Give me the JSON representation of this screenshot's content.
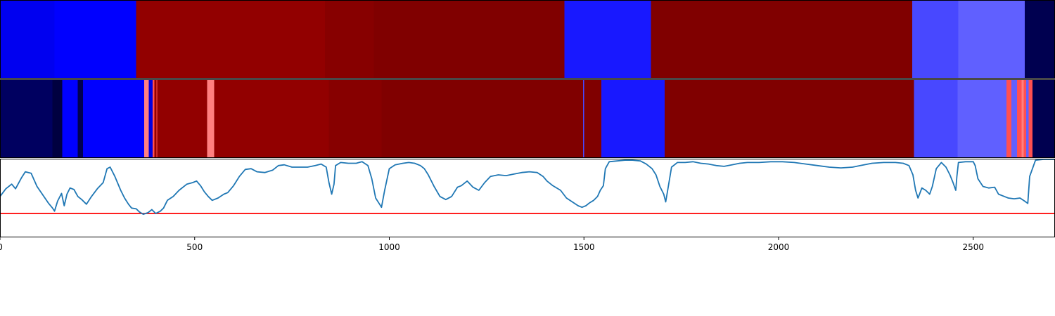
{
  "chart_data": {
    "type": "heatmap",
    "x_range": [
      0,
      2710
    ],
    "x_ticks": [
      0,
      500,
      1000,
      1500,
      2000,
      2500
    ],
    "x_tick_labels": [
      "0",
      "500",
      "1000",
      "1500",
      "2000",
      "2500"
    ],
    "strips": [
      {
        "segments": [
          {
            "start": 0,
            "end": 140,
            "color": "#0000f0"
          },
          {
            "start": 140,
            "end": 350,
            "color": "#0000ff"
          },
          {
            "start": 350,
            "end": 835,
            "color": "#920000"
          },
          {
            "start": 835,
            "end": 960,
            "color": "#870000"
          },
          {
            "start": 960,
            "end": 1450,
            "color": "#800000"
          },
          {
            "start": 1450,
            "end": 1672,
            "color": "#1818ff"
          },
          {
            "start": 1672,
            "end": 2343,
            "color": "#800000"
          },
          {
            "start": 2343,
            "end": 2462,
            "color": "#4848ff"
          },
          {
            "start": 2462,
            "end": 2632,
            "color": "#6060ff"
          },
          {
            "start": 2632,
            "end": 2710,
            "color": "#000050"
          }
        ]
      },
      {
        "segments": [
          {
            "start": 0,
            "end": 135,
            "color": "#000060"
          },
          {
            "start": 135,
            "end": 160,
            "color": "#000040"
          },
          {
            "start": 160,
            "end": 200,
            "color": "#0000ff"
          },
          {
            "start": 200,
            "end": 213,
            "color": "#000050"
          },
          {
            "start": 213,
            "end": 370,
            "color": "#0000ff"
          },
          {
            "start": 370,
            "end": 382,
            "color": "#ff8080"
          },
          {
            "start": 382,
            "end": 392,
            "color": "#0000e0"
          },
          {
            "start": 392,
            "end": 397,
            "color": "#ff5050"
          },
          {
            "start": 397,
            "end": 402,
            "color": "#920000"
          },
          {
            "start": 402,
            "end": 404,
            "color": "#ff5050"
          },
          {
            "start": 404,
            "end": 532,
            "color": "#920000"
          },
          {
            "start": 532,
            "end": 550,
            "color": "#ff8080"
          },
          {
            "start": 550,
            "end": 845,
            "color": "#920000"
          },
          {
            "start": 845,
            "end": 980,
            "color": "#870000"
          },
          {
            "start": 980,
            "end": 1498,
            "color": "#800000"
          },
          {
            "start": 1498,
            "end": 1500,
            "color": "#4848ff"
          },
          {
            "start": 1500,
            "end": 1545,
            "color": "#800000"
          },
          {
            "start": 1545,
            "end": 1707,
            "color": "#1818ff"
          },
          {
            "start": 1707,
            "end": 2348,
            "color": "#800000"
          },
          {
            "start": 2348,
            "end": 2460,
            "color": "#4848ff"
          },
          {
            "start": 2460,
            "end": 2585,
            "color": "#6060ff"
          },
          {
            "start": 2585,
            "end": 2598,
            "color": "#ff5050"
          },
          {
            "start": 2598,
            "end": 2612,
            "color": "#6060ff"
          },
          {
            "start": 2612,
            "end": 2624,
            "color": "#ff5050"
          },
          {
            "start": 2624,
            "end": 2630,
            "color": "#ff8080"
          },
          {
            "start": 2630,
            "end": 2636,
            "color": "#ff5050"
          },
          {
            "start": 2636,
            "end": 2642,
            "color": "#6060ff"
          },
          {
            "start": 2642,
            "end": 2652,
            "color": "#ff5050"
          },
          {
            "start": 2652,
            "end": 2710,
            "color": "#000050"
          }
        ]
      }
    ],
    "line_panel": {
      "type": "line",
      "ylim": [
        0,
        1
      ],
      "line_color": "#1f77b4",
      "threshold": 0.3,
      "threshold_color": "#ff0000",
      "points": [
        [
          0,
          0.52
        ],
        [
          15,
          0.62
        ],
        [
          30,
          0.68
        ],
        [
          40,
          0.62
        ],
        [
          55,
          0.76
        ],
        [
          65,
          0.84
        ],
        [
          80,
          0.82
        ],
        [
          95,
          0.65
        ],
        [
          110,
          0.54
        ],
        [
          125,
          0.43
        ],
        [
          135,
          0.37
        ],
        [
          140,
          0.33
        ],
        [
          148,
          0.46
        ],
        [
          158,
          0.56
        ],
        [
          165,
          0.4
        ],
        [
          172,
          0.55
        ],
        [
          180,
          0.63
        ],
        [
          190,
          0.61
        ],
        [
          200,
          0.52
        ],
        [
          210,
          0.48
        ],
        [
          222,
          0.42
        ],
        [
          235,
          0.52
        ],
        [
          250,
          0.62
        ],
        [
          265,
          0.7
        ],
        [
          275,
          0.88
        ],
        [
          283,
          0.9
        ],
        [
          295,
          0.78
        ],
        [
          310,
          0.6
        ],
        [
          320,
          0.5
        ],
        [
          330,
          0.42
        ],
        [
          338,
          0.37
        ],
        [
          350,
          0.36
        ],
        [
          358,
          0.32
        ],
        [
          368,
          0.29
        ],
        [
          380,
          0.31
        ],
        [
          390,
          0.35
        ],
        [
          400,
          0.3
        ],
        [
          412,
          0.33
        ],
        [
          420,
          0.37
        ],
        [
          430,
          0.47
        ],
        [
          445,
          0.52
        ],
        [
          460,
          0.6
        ],
        [
          480,
          0.68
        ],
        [
          495,
          0.7
        ],
        [
          505,
          0.72
        ],
        [
          515,
          0.66
        ],
        [
          525,
          0.58
        ],
        [
          535,
          0.52
        ],
        [
          545,
          0.47
        ],
        [
          560,
          0.5
        ],
        [
          575,
          0.55
        ],
        [
          585,
          0.57
        ],
        [
          600,
          0.66
        ],
        [
          615,
          0.78
        ],
        [
          630,
          0.87
        ],
        [
          645,
          0.88
        ],
        [
          660,
          0.84
        ],
        [
          680,
          0.83
        ],
        [
          700,
          0.86
        ],
        [
          715,
          0.92
        ],
        [
          730,
          0.93
        ],
        [
          750,
          0.9
        ],
        [
          770,
          0.9
        ],
        [
          790,
          0.9
        ],
        [
          810,
          0.92
        ],
        [
          825,
          0.94
        ],
        [
          838,
          0.9
        ],
        [
          845,
          0.7
        ],
        [
          852,
          0.55
        ],
        [
          858,
          0.68
        ],
        [
          862,
          0.92
        ],
        [
          875,
          0.96
        ],
        [
          895,
          0.95
        ],
        [
          915,
          0.95
        ],
        [
          930,
          0.97
        ],
        [
          945,
          0.92
        ],
        [
          955,
          0.75
        ],
        [
          965,
          0.5
        ],
        [
          975,
          0.42
        ],
        [
          980,
          0.38
        ],
        [
          988,
          0.6
        ],
        [
          1000,
          0.88
        ],
        [
          1015,
          0.93
        ],
        [
          1035,
          0.95
        ],
        [
          1050,
          0.96
        ],
        [
          1065,
          0.95
        ],
        [
          1080,
          0.92
        ],
        [
          1090,
          0.88
        ],
        [
          1100,
          0.8
        ],
        [
          1115,
          0.65
        ],
        [
          1130,
          0.52
        ],
        [
          1145,
          0.48
        ],
        [
          1160,
          0.52
        ],
        [
          1175,
          0.64
        ],
        [
          1185,
          0.66
        ],
        [
          1200,
          0.72
        ],
        [
          1215,
          0.64
        ],
        [
          1230,
          0.6
        ],
        [
          1245,
          0.7
        ],
        [
          1260,
          0.78
        ],
        [
          1280,
          0.8
        ],
        [
          1300,
          0.79
        ],
        [
          1320,
          0.81
        ],
        [
          1340,
          0.83
        ],
        [
          1360,
          0.84
        ],
        [
          1380,
          0.83
        ],
        [
          1395,
          0.78
        ],
        [
          1405,
          0.72
        ],
        [
          1420,
          0.66
        ],
        [
          1440,
          0.6
        ],
        [
          1455,
          0.5
        ],
        [
          1470,
          0.45
        ],
        [
          1485,
          0.4
        ],
        [
          1495,
          0.38
        ],
        [
          1505,
          0.4
        ],
        [
          1515,
          0.44
        ],
        [
          1525,
          0.47
        ],
        [
          1535,
          0.52
        ],
        [
          1542,
          0.6
        ],
        [
          1550,
          0.66
        ],
        [
          1555,
          0.88
        ],
        [
          1565,
          0.97
        ],
        [
          1585,
          0.98
        ],
        [
          1605,
          0.99
        ],
        [
          1625,
          0.99
        ],
        [
          1645,
          0.98
        ],
        [
          1660,
          0.94
        ],
        [
          1675,
          0.88
        ],
        [
          1685,
          0.8
        ],
        [
          1695,
          0.65
        ],
        [
          1705,
          0.55
        ],
        [
          1710,
          0.45
        ],
        [
          1715,
          0.6
        ],
        [
          1725,
          0.9
        ],
        [
          1740,
          0.96
        ],
        [
          1760,
          0.96
        ],
        [
          1780,
          0.97
        ],
        [
          1800,
          0.95
        ],
        [
          1820,
          0.94
        ],
        [
          1840,
          0.92
        ],
        [
          1860,
          0.91
        ],
        [
          1880,
          0.93
        ],
        [
          1900,
          0.95
        ],
        [
          1920,
          0.96
        ],
        [
          1950,
          0.96
        ],
        [
          1980,
          0.97
        ],
        [
          2010,
          0.97
        ],
        [
          2040,
          0.96
        ],
        [
          2070,
          0.94
        ],
        [
          2100,
          0.92
        ],
        [
          2130,
          0.9
        ],
        [
          2160,
          0.89
        ],
        [
          2190,
          0.9
        ],
        [
          2210,
          0.92
        ],
        [
          2240,
          0.95
        ],
        [
          2270,
          0.96
        ],
        [
          2300,
          0.96
        ],
        [
          2320,
          0.95
        ],
        [
          2335,
          0.92
        ],
        [
          2345,
          0.8
        ],
        [
          2352,
          0.6
        ],
        [
          2358,
          0.5
        ],
        [
          2362,
          0.55
        ],
        [
          2368,
          0.63
        ],
        [
          2378,
          0.6
        ],
        [
          2388,
          0.55
        ],
        [
          2395,
          0.65
        ],
        [
          2405,
          0.88
        ],
        [
          2418,
          0.96
        ],
        [
          2430,
          0.9
        ],
        [
          2440,
          0.8
        ],
        [
          2448,
          0.7
        ],
        [
          2455,
          0.6
        ],
        [
          2458,
          0.78
        ],
        [
          2462,
          0.96
        ],
        [
          2480,
          0.97
        ],
        [
          2500,
          0.97
        ],
        [
          2505,
          0.92
        ],
        [
          2512,
          0.75
        ],
        [
          2525,
          0.65
        ],
        [
          2540,
          0.63
        ],
        [
          2555,
          0.64
        ],
        [
          2565,
          0.55
        ],
        [
          2580,
          0.52
        ],
        [
          2590,
          0.5
        ],
        [
          2605,
          0.49
        ],
        [
          2620,
          0.5
        ],
        [
          2632,
          0.46
        ],
        [
          2640,
          0.43
        ],
        [
          2645,
          0.78
        ],
        [
          2660,
          0.99
        ],
        [
          2680,
          1.0
        ],
        [
          2710,
          1.0
        ]
      ]
    }
  }
}
